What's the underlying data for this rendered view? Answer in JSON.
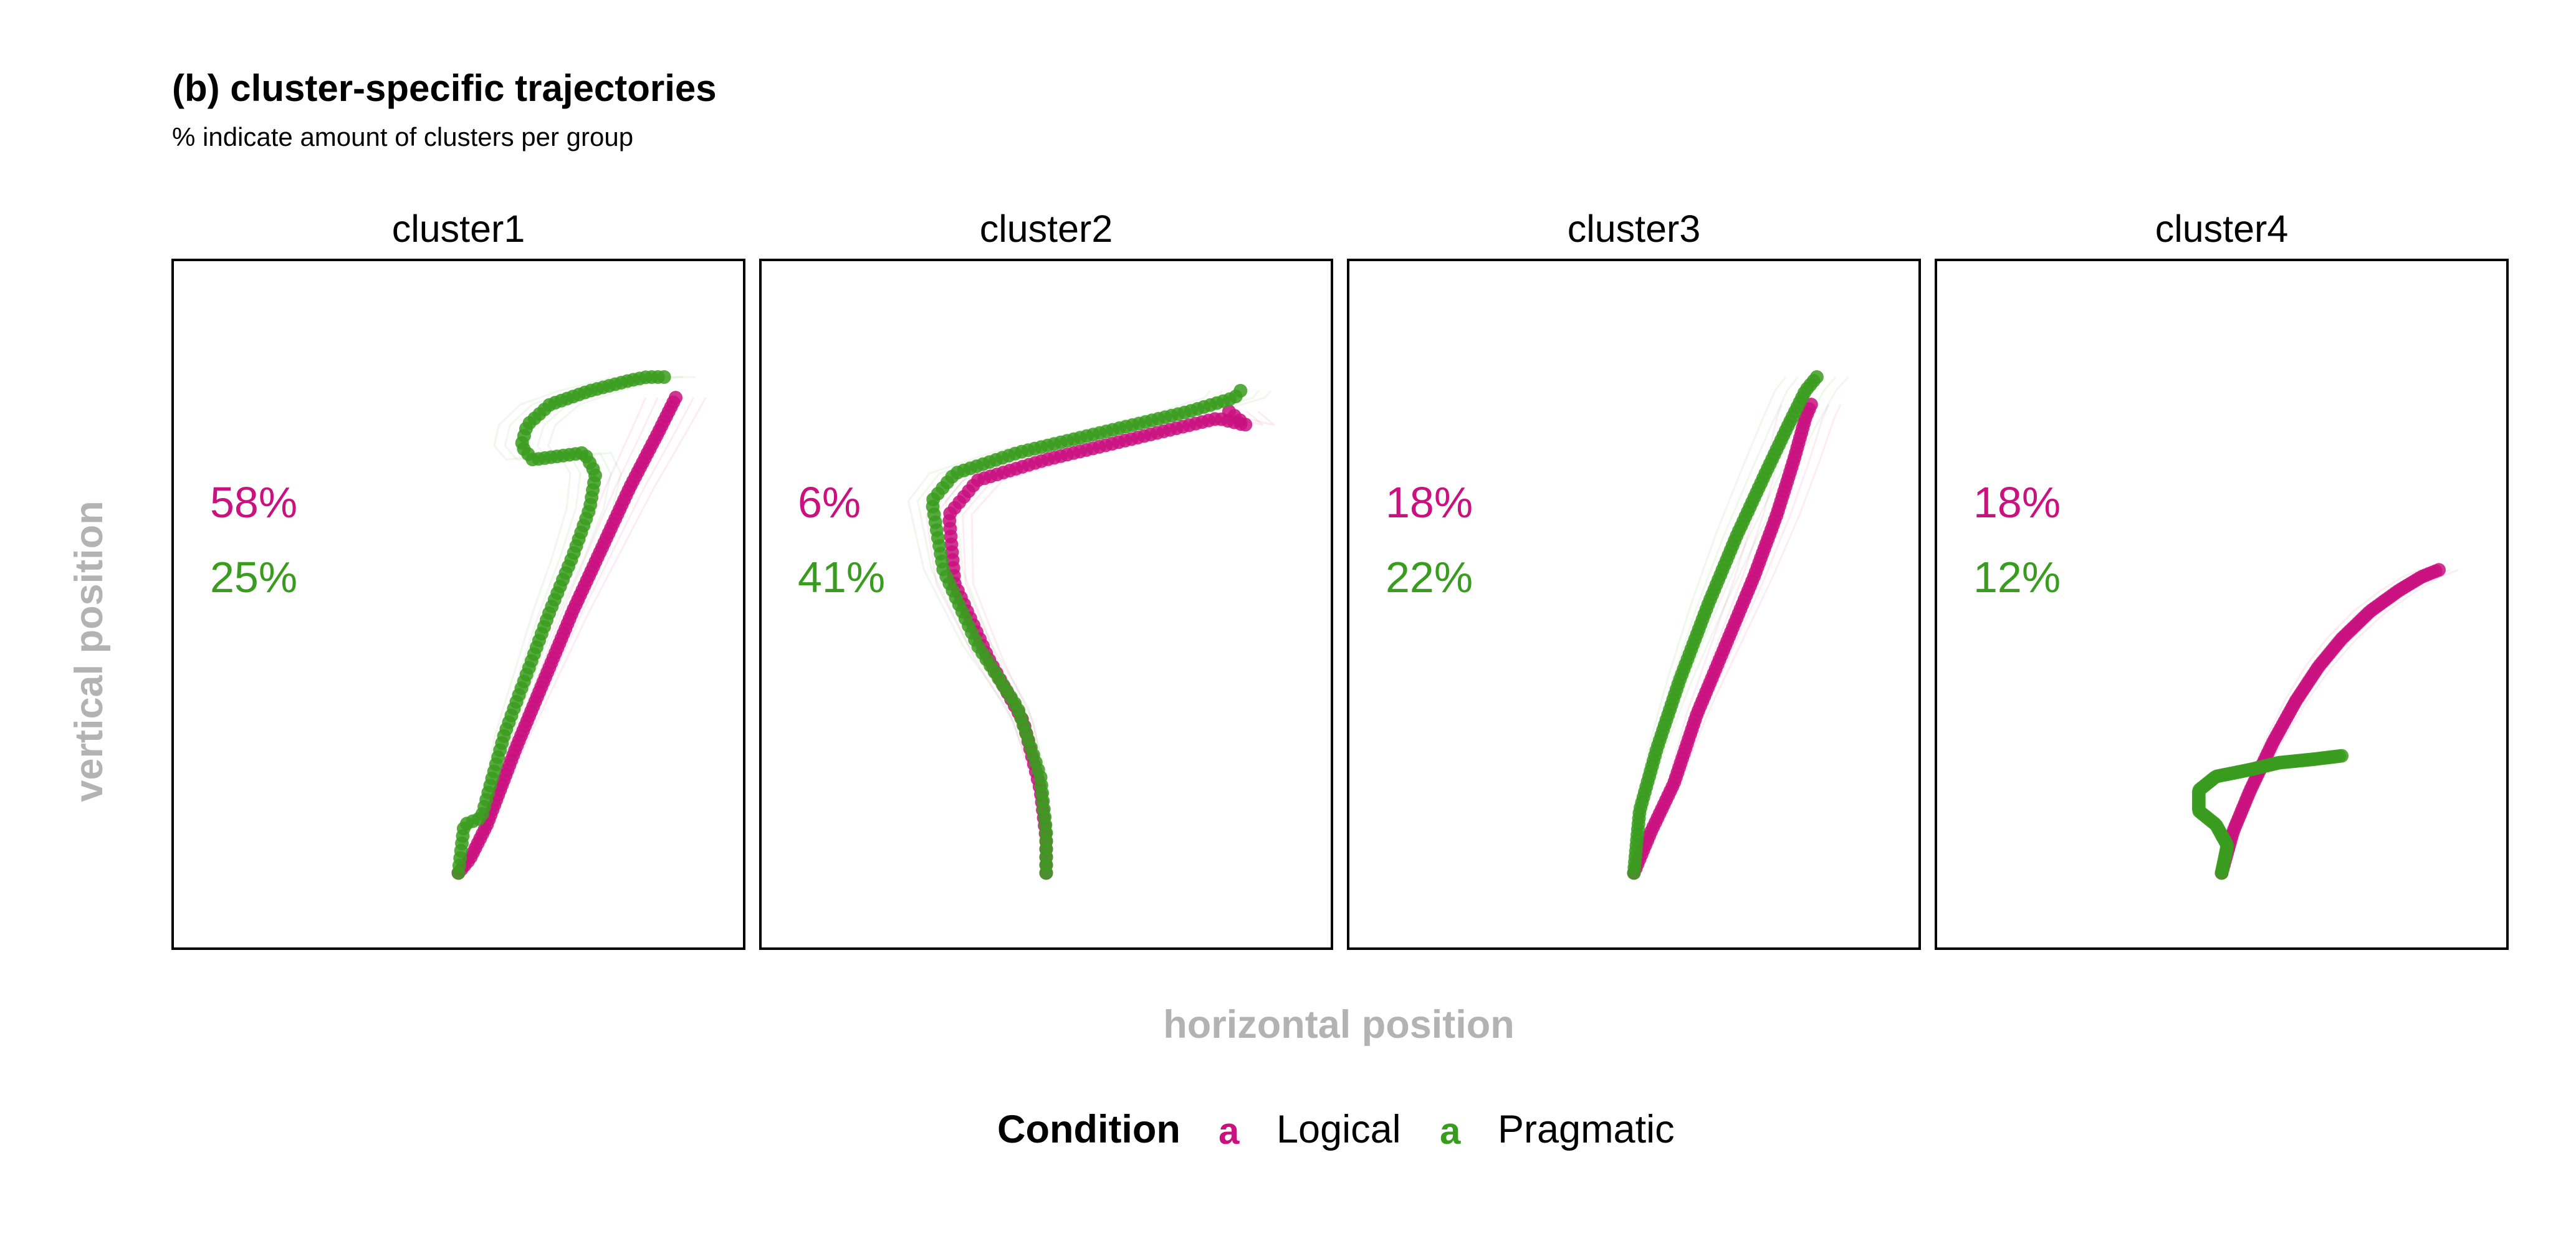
{
  "chart_data": {
    "type": "line",
    "title": "(b) cluster-specific trajectories",
    "subtitle": "% indicate amount of clusters per group",
    "xlabel": "horizontal position",
    "ylabel": "vertical position",
    "legend": {
      "title": "Condition",
      "key_glyph": "a",
      "placement": "bottom",
      "entries": [
        {
          "label": "Logical",
          "color": "#c9117f"
        },
        {
          "label": "Pragmatic",
          "color": "#3a9c1f"
        }
      ]
    },
    "xlim": [
      0,
      1
    ],
    "ylim": [
      0,
      1
    ],
    "grid": false,
    "panels": [
      {
        "label": "cluster1",
        "percents": [
          "58%",
          "25%"
        ],
        "series": [
          {
            "name": "Logical",
            "color": "#c9117f",
            "x": [
              0.5,
              0.52,
              0.55,
              0.6,
              0.65,
              0.7,
              0.75,
              0.8,
              0.85,
              0.88
            ],
            "y": [
              0.11,
              0.13,
              0.18,
              0.29,
              0.39,
              0.49,
              0.58,
              0.67,
              0.75,
              0.8
            ]
          },
          {
            "name": "Pragmatic",
            "color": "#3a9c1f",
            "x": [
              0.5,
              0.51,
              0.54,
              0.55,
              0.58,
              0.62,
              0.66,
              0.7,
              0.73,
              0.74,
              0.72,
              0.63,
              0.61,
              0.62,
              0.66,
              0.73,
              0.8,
              0.83,
              0.86
            ],
            "y": [
              0.11,
              0.18,
              0.19,
              0.22,
              0.31,
              0.4,
              0.49,
              0.57,
              0.64,
              0.69,
              0.72,
              0.71,
              0.73,
              0.76,
              0.79,
              0.81,
              0.825,
              0.83,
              0.83
            ]
          }
        ]
      },
      {
        "label": "cluster2",
        "percents": [
          "6%",
          "41%"
        ],
        "series": [
          {
            "name": "Logical",
            "color": "#c9117f",
            "x": [
              0.5,
              0.5,
              0.49,
              0.46,
              0.4,
              0.34,
              0.33,
              0.38,
              0.5,
              0.65,
              0.8,
              0.85,
              0.82
            ],
            "y": [
              0.11,
              0.16,
              0.23,
              0.33,
              0.42,
              0.53,
              0.63,
              0.68,
              0.71,
              0.74,
              0.77,
              0.76,
              0.78
            ]
          },
          {
            "name": "Pragmatic",
            "color": "#3a9c1f",
            "x": [
              0.5,
              0.5,
              0.49,
              0.45,
              0.38,
              0.32,
              0.3,
              0.34,
              0.45,
              0.6,
              0.75,
              0.83,
              0.84
            ],
            "y": [
              0.11,
              0.17,
              0.25,
              0.35,
              0.44,
              0.55,
              0.65,
              0.69,
              0.72,
              0.75,
              0.78,
              0.8,
              0.81
            ]
          }
        ]
      },
      {
        "label": "cluster3",
        "percents": [
          "18%",
          "22%"
        ],
        "series": [
          {
            "name": "Logical",
            "color": "#c9117f",
            "x": [
              0.5,
              0.53,
              0.57,
              0.61,
              0.66,
              0.71,
              0.75,
              0.78,
              0.8,
              0.81
            ],
            "y": [
              0.11,
              0.17,
              0.24,
              0.34,
              0.44,
              0.54,
              0.63,
              0.71,
              0.77,
              0.79
            ]
          },
          {
            "name": "Pragmatic",
            "color": "#3a9c1f",
            "x": [
              0.5,
              0.51,
              0.54,
              0.58,
              0.63,
              0.68,
              0.73,
              0.77,
              0.8,
              0.82
            ],
            "y": [
              0.11,
              0.2,
              0.29,
              0.39,
              0.5,
              0.6,
              0.69,
              0.76,
              0.81,
              0.83
            ]
          }
        ]
      },
      {
        "label": "cluster4",
        "percents": [
          "18%",
          "12%"
        ],
        "series": [
          {
            "name": "Logical",
            "color": "#c9117f",
            "x": [
              0.5,
              0.52,
              0.55,
              0.59,
              0.63,
              0.67,
              0.71,
              0.76,
              0.81,
              0.85,
              0.88
            ],
            "y": [
              0.11,
              0.17,
              0.23,
              0.3,
              0.36,
              0.41,
              0.45,
              0.49,
              0.52,
              0.54,
              0.55
            ]
          },
          {
            "name": "Pragmatic",
            "color": "#3a9c1f",
            "x": [
              0.5,
              0.51,
              0.49,
              0.46,
              0.46,
              0.49,
              0.55,
              0.6,
              0.66,
              0.71
            ],
            "y": [
              0.11,
              0.15,
              0.18,
              0.2,
              0.23,
              0.25,
              0.26,
              0.27,
              0.275,
              0.28
            ]
          }
        ]
      }
    ]
  }
}
